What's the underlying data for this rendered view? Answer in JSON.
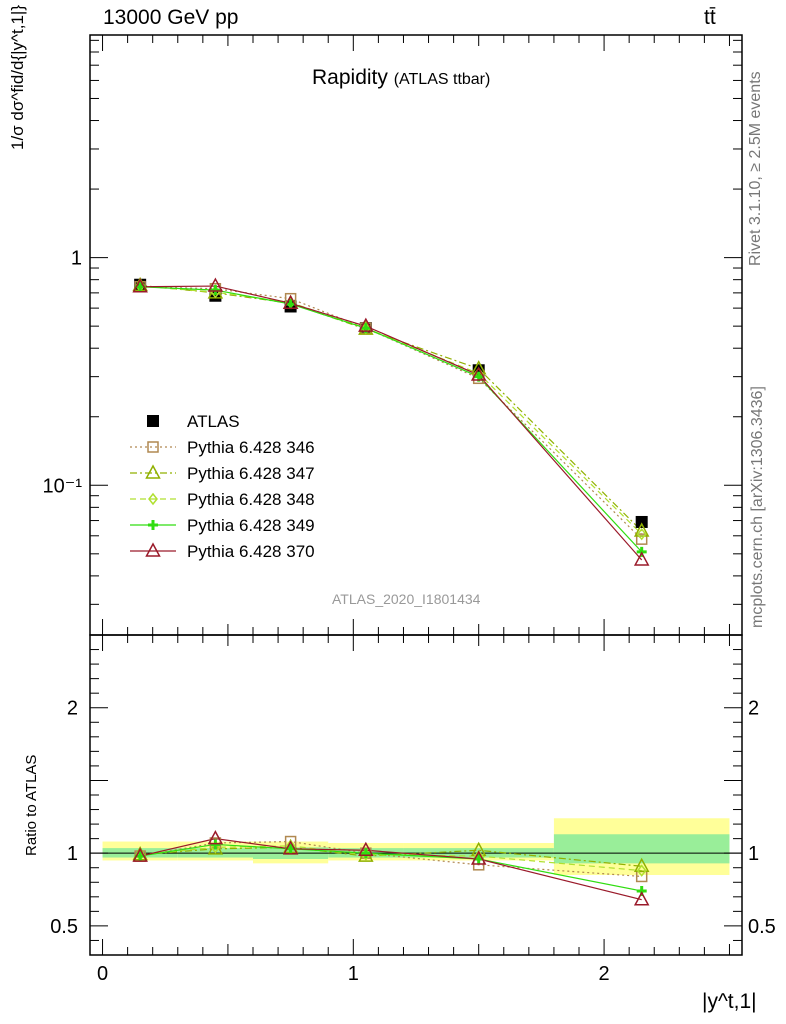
{
  "header": {
    "left": "13000 GeV pp",
    "right": "tt̄"
  },
  "side_labels": {
    "rivet": "Rivet 3.1.10, ≥ 2.5M events",
    "mcplots": "mcplots.cern.ch [arXiv:1306.3436]"
  },
  "chart_data": [
    {
      "type": "line",
      "title": "Rapidity",
      "subtitle": "(ATLAS ttbar)",
      "ylabel": "1/σ dσ^fid/d{|y^t,1|}",
      "yscale": "log",
      "ylim": [
        0.022,
        9.5
      ],
      "xlim": [
        -0.05,
        2.55
      ],
      "yticks": [
        {
          "value": 1,
          "label": "1"
        },
        {
          "value": 0.1,
          "label": "10⁻¹"
        }
      ],
      "analysis_label": "ATLAS_2020_I1801434",
      "legend_position": "center-left",
      "x": [
        0.15,
        0.45,
        0.75,
        1.05,
        1.5,
        2.15
      ],
      "x_bin_edges": [
        0,
        0.3,
        0.6,
        0.9,
        1.2,
        1.8,
        2.5
      ],
      "series": [
        {
          "name": "ATLAS",
          "color": "#000000",
          "marker": "square-filled",
          "values": [
            0.76,
            0.68,
            0.61,
            0.49,
            0.32,
            0.069
          ]
        },
        {
          "name": "Pythia 6.428 346",
          "color": "#b08850",
          "marker": "square-open",
          "dash": "dotted",
          "values": [
            0.745,
            0.73,
            0.66,
            0.49,
            0.295,
            0.058
          ]
        },
        {
          "name": "Pythia 6.428 347",
          "color": "#90b000",
          "marker": "triangle-open",
          "dash": "dashdot",
          "values": [
            0.755,
            0.7,
            0.63,
            0.485,
            0.325,
            0.063
          ]
        },
        {
          "name": "Pythia 6.428 348",
          "color": "#b0e030",
          "marker": "diamond-open",
          "dash": "dashed",
          "values": [
            0.75,
            0.705,
            0.635,
            0.49,
            0.31,
            0.061
          ]
        },
        {
          "name": "Pythia 6.428 349",
          "color": "#30dd10",
          "marker": "cross",
          "dash": "solid",
          "values": [
            0.745,
            0.72,
            0.625,
            0.49,
            0.3,
            0.051
          ]
        },
        {
          "name": "Pythia 6.428 370",
          "color": "#9a1a2a",
          "marker": "triangle-open",
          "dash": "solid",
          "values": [
            0.745,
            0.75,
            0.63,
            0.5,
            0.305,
            0.047
          ]
        }
      ]
    },
    {
      "type": "line",
      "ylabel": "Ratio to ATLAS",
      "xlabel": "|y^t,1|",
      "ylim": [
        0.3,
        2.5
      ],
      "xlim": [
        -0.05,
        2.55
      ],
      "xticks": [
        {
          "value": 0,
          "label": "0"
        },
        {
          "value": 1,
          "label": "1"
        },
        {
          "value": 2,
          "label": "2"
        }
      ],
      "yticks": [
        {
          "value": 0.5,
          "label": "0.5"
        },
        {
          "value": 1,
          "label": "1"
        },
        {
          "value": 2,
          "label": "2"
        }
      ],
      "uncertainty_bands": {
        "x_bin_edges": [
          0,
          0.3,
          0.6,
          0.9,
          1.2,
          1.8,
          2.5
        ],
        "stat": [
          [
            0.97,
            1.035
          ],
          [
            0.97,
            1.035
          ],
          [
            0.96,
            1.04
          ],
          [
            0.97,
            1.035
          ],
          [
            0.97,
            1.035
          ],
          [
            0.93,
            1.13
          ]
        ],
        "total": [
          [
            0.95,
            1.08
          ],
          [
            0.95,
            1.08
          ],
          [
            0.93,
            1.08
          ],
          [
            0.95,
            1.07
          ],
          [
            0.95,
            1.07
          ],
          [
            0.85,
            1.24
          ]
        ],
        "stat_color": "#99ee99",
        "total_color": "#ffff99"
      },
      "x": [
        0.15,
        0.45,
        0.75,
        1.05,
        1.5,
        2.15
      ],
      "series": [
        {
          "name": "Pythia 6.428 346",
          "color": "#b08850",
          "marker": "square-open",
          "dash": "dotted",
          "values": [
            0.98,
            1.07,
            1.08,
            1.0,
            0.92,
            0.84
          ]
        },
        {
          "name": "Pythia 6.428 347",
          "color": "#90b000",
          "marker": "triangle-open",
          "dash": "dashdot",
          "values": [
            0.99,
            1.03,
            1.04,
            0.98,
            1.02,
            0.91
          ]
        },
        {
          "name": "Pythia 6.428 348",
          "color": "#b0e030",
          "marker": "diamond-open",
          "dash": "dashed",
          "values": [
            0.99,
            1.04,
            1.05,
            0.99,
            0.98,
            0.88
          ]
        },
        {
          "name": "Pythia 6.428 349",
          "color": "#30dd10",
          "marker": "cross",
          "dash": "solid",
          "values": [
            0.98,
            1.06,
            1.03,
            1.0,
            0.96,
            0.74
          ]
        },
        {
          "name": "Pythia 6.428 370",
          "color": "#9a1a2a",
          "marker": "triangle-open",
          "dash": "solid",
          "values": [
            0.98,
            1.1,
            1.03,
            1.02,
            0.96,
            0.68
          ]
        }
      ]
    }
  ]
}
